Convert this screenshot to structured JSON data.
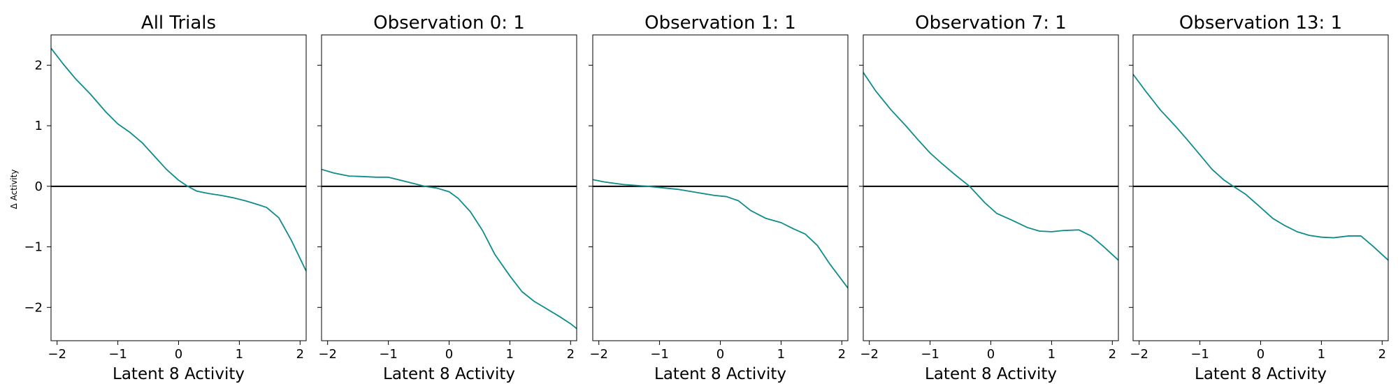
{
  "figure": {
    "ylabel": "Δ Activity",
    "line_color": "#0e8b8b",
    "zero_line_color": "#000000"
  },
  "chart_data": [
    {
      "type": "line",
      "title": "All Trials",
      "xlabel": "Latent 8 Activity",
      "ylabel": "Δ Activity",
      "xlim": [
        -2.1,
        2.1
      ],
      "ylim": [
        -2.55,
        2.5
      ],
      "xticks": [
        -2,
        -1,
        0,
        1,
        2
      ],
      "yticks": [
        -2,
        -1,
        0,
        1,
        2
      ],
      "x": [
        -2.1,
        -1.9,
        -1.7,
        -1.45,
        -1.2,
        -1.0,
        -0.8,
        -0.6,
        -0.4,
        -0.2,
        0.0,
        0.15,
        0.3,
        0.5,
        0.7,
        0.9,
        1.1,
        1.3,
        1.45,
        1.65,
        1.85,
        2.1
      ],
      "series": [
        {
          "values": [
            2.28,
            2.02,
            1.78,
            1.52,
            1.23,
            1.03,
            0.89,
            0.72,
            0.5,
            0.28,
            0.1,
            0.0,
            -0.08,
            -0.12,
            -0.15,
            -0.19,
            -0.24,
            -0.3,
            -0.35,
            -0.52,
            -0.88,
            -1.4
          ]
        }
      ]
    },
    {
      "type": "line",
      "title": "Observation 0: 1",
      "xlabel": "Latent 8 Activity",
      "xlim": [
        -2.1,
        2.1
      ],
      "ylim": [
        -2.55,
        2.5
      ],
      "xticks": [
        -2,
        -1,
        0,
        1,
        2
      ],
      "yticks": [
        -2,
        -1,
        0,
        1,
        2
      ],
      "x": [
        -2.1,
        -1.9,
        -1.65,
        -1.4,
        -1.2,
        -1.0,
        -0.8,
        -0.6,
        -0.4,
        -0.2,
        0.0,
        0.15,
        0.35,
        0.55,
        0.75,
        1.0,
        1.2,
        1.4,
        1.6,
        1.8,
        2.0,
        2.1
      ],
      "series": [
        {
          "values": [
            0.28,
            0.22,
            0.17,
            0.16,
            0.15,
            0.15,
            0.1,
            0.05,
            0.0,
            -0.03,
            -0.09,
            -0.2,
            -0.42,
            -0.73,
            -1.12,
            -1.48,
            -1.74,
            -1.9,
            -2.02,
            -2.14,
            -2.27,
            -2.35
          ]
        }
      ]
    },
    {
      "type": "line",
      "title": "Observation 1: 1",
      "xlabel": "Latent 8 Activity",
      "xlim": [
        -2.1,
        2.1
      ],
      "ylim": [
        -2.55,
        2.5
      ],
      "xticks": [
        -2,
        -1,
        0,
        1,
        2
      ],
      "yticks": [
        -2,
        -1,
        0,
        1,
        2
      ],
      "x": [
        -2.1,
        -1.9,
        -1.6,
        -1.2,
        -1.0,
        -0.7,
        -0.4,
        -0.1,
        0.1,
        0.3,
        0.5,
        0.75,
        1.0,
        1.2,
        1.4,
        1.6,
        1.8,
        2.1
      ],
      "series": [
        {
          "values": [
            0.11,
            0.07,
            0.03,
            0.0,
            -0.02,
            -0.05,
            -0.1,
            -0.15,
            -0.17,
            -0.24,
            -0.4,
            -0.53,
            -0.6,
            -0.7,
            -0.79,
            -0.98,
            -1.28,
            -1.68
          ]
        }
      ]
    },
    {
      "type": "line",
      "title": "Observation 7: 1",
      "xlabel": "Latent 8 Activity",
      "xlim": [
        -2.1,
        2.1
      ],
      "ylim": [
        -2.55,
        2.5
      ],
      "xticks": [
        -2,
        -1,
        0,
        1,
        2
      ],
      "yticks": [
        -2,
        -1,
        0,
        1,
        2
      ],
      "x": [
        -2.1,
        -1.9,
        -1.65,
        -1.4,
        -1.2,
        -1.0,
        -0.8,
        -0.6,
        -0.35,
        -0.1,
        0.1,
        0.35,
        0.6,
        0.8,
        1.0,
        1.2,
        1.45,
        1.65,
        1.85,
        2.1
      ],
      "series": [
        {
          "values": [
            1.88,
            1.58,
            1.27,
            1.0,
            0.77,
            0.55,
            0.37,
            0.2,
            0.0,
            -0.27,
            -0.45,
            -0.56,
            -0.68,
            -0.74,
            -0.75,
            -0.73,
            -0.72,
            -0.82,
            -0.99,
            -1.22
          ]
        }
      ]
    },
    {
      "type": "line",
      "title": "Observation 13: 1",
      "xlabel": "Latent 8 Activity",
      "xlim": [
        -2.1,
        2.1
      ],
      "ylim": [
        -2.55,
        2.5
      ],
      "xticks": [
        -2,
        -1,
        0,
        1,
        2
      ],
      "yticks": [
        -2,
        -1,
        0,
        1,
        2
      ],
      "x": [
        -2.1,
        -1.9,
        -1.65,
        -1.4,
        -1.2,
        -1.0,
        -0.8,
        -0.6,
        -0.45,
        -0.25,
        0.0,
        0.2,
        0.4,
        0.6,
        0.8,
        1.0,
        1.2,
        1.45,
        1.65,
        1.85,
        2.1
      ],
      "series": [
        {
          "values": [
            1.85,
            1.58,
            1.26,
            0.99,
            0.76,
            0.52,
            0.28,
            0.1,
            0.0,
            -0.13,
            -0.35,
            -0.53,
            -0.65,
            -0.75,
            -0.81,
            -0.84,
            -0.85,
            -0.82,
            -0.82,
            -0.99,
            -1.22
          ]
        }
      ]
    }
  ]
}
